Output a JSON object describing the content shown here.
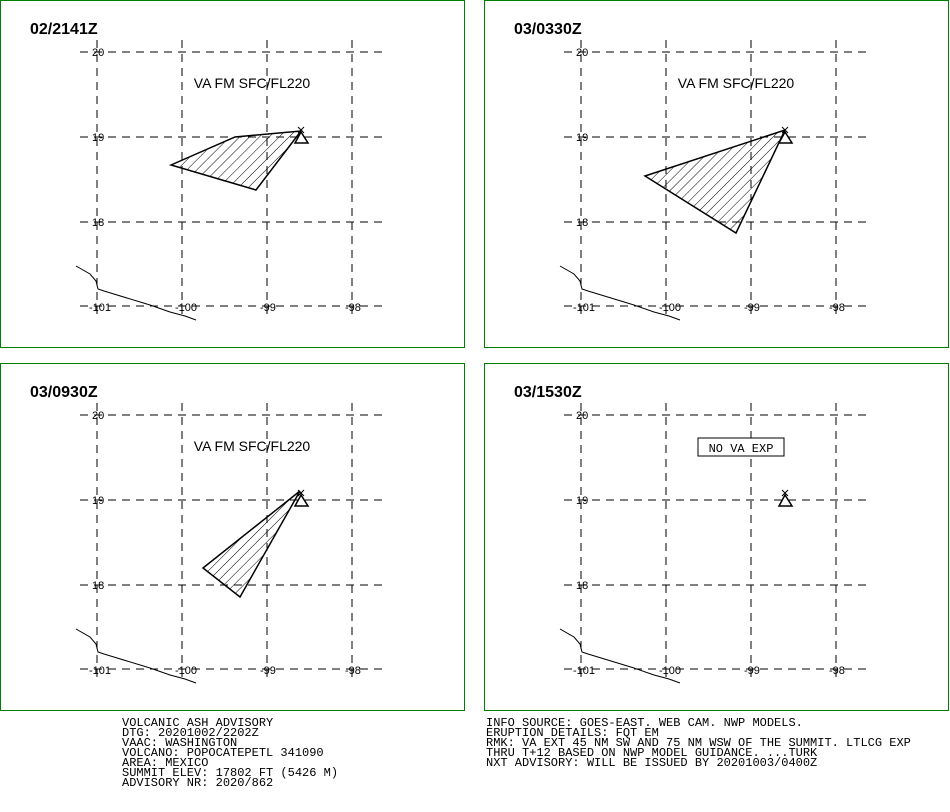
{
  "panels": [
    {
      "time": "02/2141Z",
      "label": "VA FM SFC/FL220"
    },
    {
      "time": "03/0330Z",
      "label": "VA FM SFC/FL220"
    },
    {
      "time": "03/0930Z",
      "label": "VA FM SFC/FL220"
    },
    {
      "time": "03/1530Z",
      "label": "NO VA EXP"
    }
  ],
  "lat_ticks": [
    20,
    19,
    18
  ],
  "lon_ticks": [
    -101,
    -100,
    -99,
    -98
  ],
  "advisory": {
    "left": [
      "VOLCANIC ASH ADVISORY",
      "DTG: 20201002/2202Z",
      "VAAC: WASHINGTON",
      "VOLCANO: POPOCATEPETL 341090",
      "AREA: MEXICO",
      "SUMMIT ELEV: 17802 FT (5426 M)",
      "ADVISORY NR: 2020/862"
    ],
    "right": [
      "INFO SOURCE: GOES-EAST. WEB CAM. NWP MODELS.",
      "ERUPTION DETAILS: FQT EM",
      "RMK: VA EXT 45 NM SW AND 75 NM WSW OF THE SUMMIT. LTLCG EXP",
      "THRU T+12 BASED ON NWP MODEL GUIDANCE. ...TURK",
      "NXT ADVISORY: WILL BE ISSUED BY 20201003/0400Z"
    ]
  }
}
